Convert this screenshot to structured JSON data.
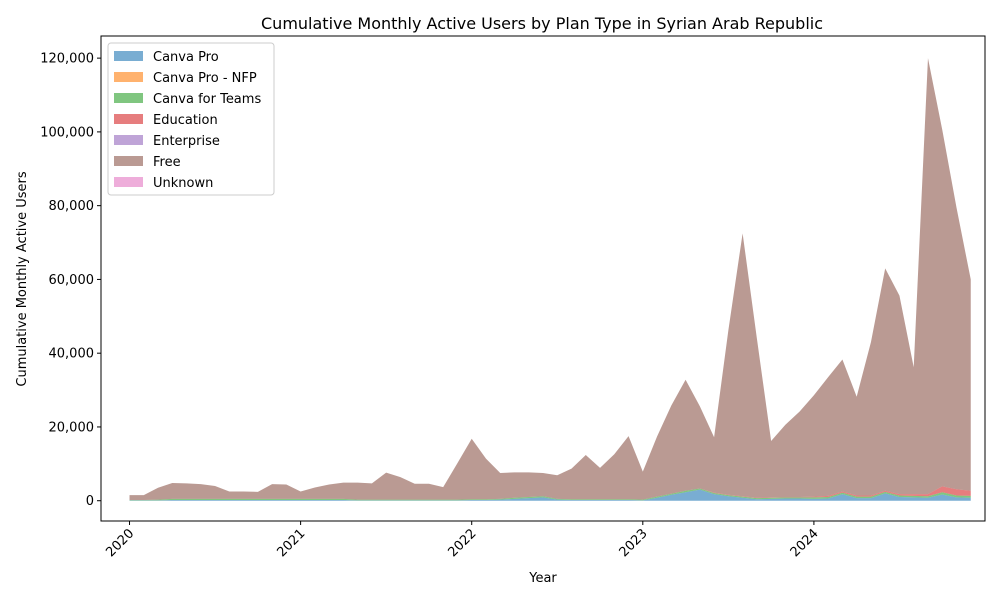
{
  "chart_data": {
    "type": "area",
    "stacked": true,
    "title": "Cumulative Monthly Active Users by Plan Type in Syrian Arab Republic",
    "xlabel": "Year",
    "ylabel": "Cumulative Monthly Active Users",
    "x_ticks": [
      "2020",
      "2021",
      "2022",
      "2023",
      "2024"
    ],
    "y_ticks": [
      "0",
      "20,000",
      "40,000",
      "60,000",
      "80,000",
      "100,000",
      "120,000"
    ],
    "ylim": [
      -5500,
      126000
    ],
    "xlim": [
      "2019-11",
      "2025-01"
    ],
    "legend_position": "top-left",
    "x": [
      "2020-01",
      "2020-02",
      "2020-03",
      "2020-04",
      "2020-05",
      "2020-06",
      "2020-07",
      "2020-08",
      "2020-09",
      "2020-10",
      "2020-11",
      "2020-12",
      "2021-01",
      "2021-02",
      "2021-03",
      "2021-04",
      "2021-05",
      "2021-06",
      "2021-07",
      "2021-08",
      "2021-09",
      "2021-10",
      "2021-11",
      "2021-12",
      "2022-01",
      "2022-02",
      "2022-03",
      "2022-04",
      "2022-05",
      "2022-06",
      "2022-07",
      "2022-08",
      "2022-09",
      "2022-10",
      "2022-11",
      "2022-12",
      "2023-01",
      "2023-02",
      "2023-03",
      "2023-04",
      "2023-05",
      "2023-06",
      "2023-07",
      "2023-08",
      "2023-09",
      "2023-10",
      "2023-11",
      "2023-12",
      "2024-01",
      "2024-02",
      "2024-03",
      "2024-04",
      "2024-05",
      "2024-06",
      "2024-07",
      "2024-08",
      "2024-09",
      "2024-10",
      "2024-11",
      "2024-12"
    ],
    "series": [
      {
        "name": "Canva Pro",
        "color": "#1f77b4",
        "values": [
          100,
          100,
          100,
          200,
          200,
          200,
          200,
          200,
          200,
          200,
          200,
          200,
          200,
          200,
          200,
          200,
          100,
          100,
          100,
          100,
          100,
          100,
          100,
          100,
          200,
          200,
          300,
          500,
          700,
          900,
          300,
          200,
          200,
          200,
          200,
          200,
          100,
          800,
          1600,
          2300,
          3000,
          1800,
          1200,
          800,
          400,
          500,
          600,
          600,
          500,
          600,
          1800,
          700,
          700,
          2000,
          1000,
          900,
          800,
          1700,
          900,
          800
        ]
      },
      {
        "name": "Canva Pro - NFP",
        "color": "#ff7f0e",
        "values": [
          0,
          0,
          0,
          0,
          0,
          0,
          0,
          0,
          0,
          0,
          0,
          0,
          0,
          0,
          0,
          0,
          0,
          0,
          0,
          0,
          0,
          0,
          0,
          0,
          0,
          0,
          0,
          0,
          0,
          0,
          0,
          0,
          0,
          0,
          0,
          0,
          0,
          0,
          0,
          0,
          0,
          0,
          0,
          0,
          0,
          0,
          0,
          0,
          0,
          0,
          0,
          0,
          0,
          0,
          0,
          0,
          0,
          0,
          0,
          0
        ]
      },
      {
        "name": "Canva for Teams",
        "color": "#2ca02c",
        "values": [
          100,
          100,
          200,
          300,
          300,
          300,
          300,
          300,
          300,
          300,
          300,
          300,
          300,
          300,
          300,
          300,
          200,
          200,
          200,
          200,
          200,
          200,
          200,
          200,
          200,
          200,
          200,
          300,
          300,
          300,
          200,
          200,
          200,
          200,
          200,
          200,
          200,
          300,
          300,
          400,
          300,
          300,
          300,
          300,
          300,
          300,
          300,
          300,
          400,
          400,
          400,
          400,
          400,
          400,
          400,
          400,
          400,
          600,
          500,
          500
        ]
      },
      {
        "name": "Education",
        "color": "#d62728",
        "values": [
          0,
          0,
          0,
          0,
          0,
          0,
          0,
          0,
          0,
          0,
          0,
          0,
          0,
          0,
          0,
          0,
          0,
          0,
          0,
          0,
          0,
          0,
          0,
          0,
          0,
          0,
          0,
          0,
          0,
          0,
          0,
          0,
          0,
          0,
          0,
          0,
          0,
          0,
          0,
          0,
          0,
          100,
          100,
          100,
          100,
          100,
          100,
          100,
          200,
          300,
          300,
          300,
          300,
          300,
          400,
          500,
          600,
          1600,
          1700,
          1400
        ]
      },
      {
        "name": "Enterprise",
        "color": "#9467bd",
        "values": [
          0,
          0,
          0,
          0,
          0,
          0,
          0,
          0,
          0,
          0,
          0,
          0,
          0,
          0,
          0,
          0,
          0,
          0,
          0,
          0,
          0,
          0,
          0,
          0,
          0,
          0,
          0,
          0,
          0,
          0,
          0,
          0,
          0,
          0,
          0,
          0,
          0,
          0,
          0,
          0,
          0,
          0,
          0,
          0,
          0,
          0,
          0,
          0,
          0,
          0,
          0,
          0,
          0,
          0,
          0,
          0,
          0,
          0,
          0,
          0
        ]
      },
      {
        "name": "Free",
        "color": "#8c564b",
        "values": [
          1300,
          1300,
          3200,
          4300,
          4200,
          4000,
          3500,
          2000,
          2000,
          1900,
          4000,
          3900,
          2000,
          3100,
          3900,
          4400,
          4600,
          4400,
          7300,
          6100,
          4300,
          4300,
          3400,
          9900,
          16400,
          11000,
          7000,
          6900,
          6700,
          6300,
          6400,
          8300,
          12000,
          8500,
          12200,
          17100,
          7600,
          16300,
          23900,
          30100,
          22300,
          15000,
          44600,
          71300,
          43200,
          15300,
          19600,
          23200,
          27500,
          32200,
          35800,
          26800,
          41600,
          60300,
          53800,
          34400,
          118200,
          96700,
          76400,
          57300
        ]
      },
      {
        "name": "Unknown",
        "color": "#e377c2",
        "values": [
          0,
          0,
          0,
          0,
          0,
          0,
          0,
          0,
          0,
          0,
          0,
          0,
          0,
          0,
          0,
          0,
          0,
          0,
          0,
          0,
          0,
          0,
          0,
          0,
          0,
          0,
          0,
          0,
          0,
          0,
          0,
          0,
          0,
          0,
          0,
          0,
          0,
          0,
          0,
          0,
          0,
          0,
          0,
          0,
          0,
          0,
          0,
          0,
          0,
          0,
          0,
          0,
          0,
          0,
          0,
          0,
          0,
          0,
          0,
          0
        ]
      }
    ]
  }
}
